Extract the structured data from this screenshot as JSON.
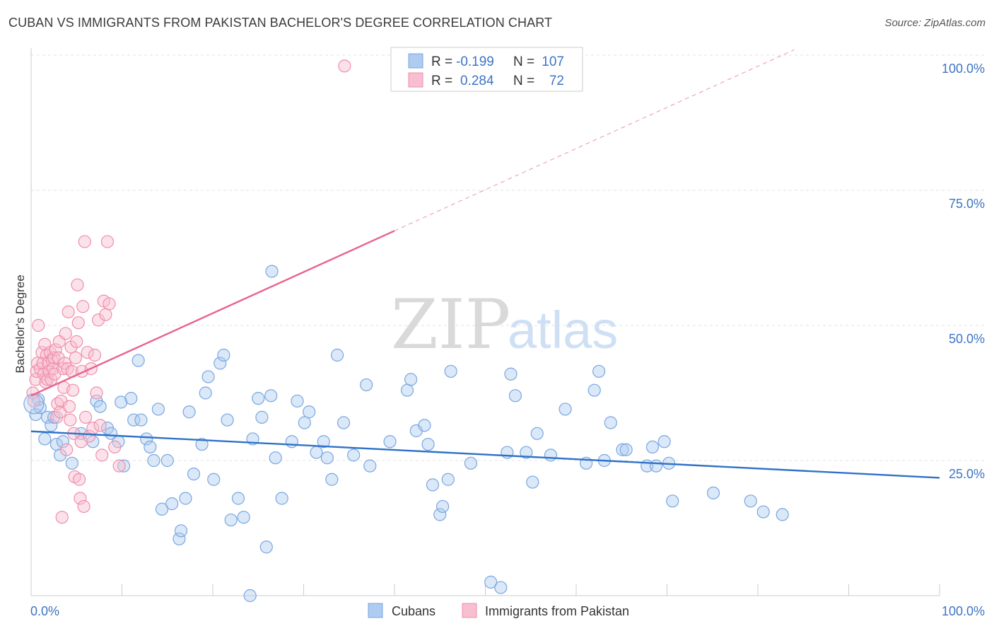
{
  "chart_data": {
    "type": "scatter",
    "title": "CUBAN VS IMMIGRANTS FROM PAKISTAN BACHELOR'S DEGREE CORRELATION CHART",
    "source": "Source: ZipAtlas.com",
    "ylabel": "Bachelor's Degree",
    "xlim": [
      0,
      100
    ],
    "ylim": [
      0,
      100
    ],
    "x_ticks": [
      "0.0%",
      "100.0%"
    ],
    "y_ticks": [
      {
        "value": 100,
        "label": "100.0%"
      },
      {
        "value": 75,
        "label": "75.0%"
      },
      {
        "value": 50,
        "label": "50.0%"
      },
      {
        "value": 25,
        "label": "25.0%"
      }
    ],
    "watermark": {
      "part1": "ZIP",
      "part2": "atlas"
    },
    "legend": [
      {
        "r_label": "R =",
        "r_value": "-0.199",
        "n_label": "N =",
        "n_value": "107"
      },
      {
        "r_label": "R =",
        "r_value": "0.284",
        "n_label": "N =",
        "n_value": "72"
      }
    ],
    "series": [
      {
        "name": "Cubans",
        "color": "#7aa7e0",
        "fill": "#aecbf0",
        "line_color": "#2f72c8",
        "trend": {
          "x0": 0,
          "y0": 30.4,
          "x1": 100,
          "y1": 21.8
        },
        "points": [
          [
            0.5,
            33.5
          ],
          [
            0.8,
            36.3
          ],
          [
            1.0,
            34.8
          ],
          [
            1.5,
            29.0
          ],
          [
            1.8,
            33.0
          ],
          [
            2.2,
            31.5
          ],
          [
            2.5,
            33.0
          ],
          [
            2.8,
            28.0
          ],
          [
            3.2,
            26.0
          ],
          [
            3.5,
            28.5
          ],
          [
            4.5,
            24.5
          ],
          [
            5.5,
            30.0
          ],
          [
            6.8,
            28.5
          ],
          [
            7.2,
            36.0
          ],
          [
            7.6,
            35.0
          ],
          [
            8.4,
            31.0
          ],
          [
            8.8,
            30.0
          ],
          [
            9.6,
            28.5
          ],
          [
            9.9,
            35.8
          ],
          [
            10.2,
            24.0
          ],
          [
            11.0,
            36.5
          ],
          [
            11.3,
            32.5
          ],
          [
            11.8,
            43.5
          ],
          [
            12.1,
            32.5
          ],
          [
            12.7,
            29.0
          ],
          [
            13.1,
            27.5
          ],
          [
            13.5,
            25.0
          ],
          [
            14.0,
            34.5
          ],
          [
            14.4,
            16.0
          ],
          [
            15.0,
            25.0
          ],
          [
            15.5,
            17.0
          ],
          [
            16.3,
            10.5
          ],
          [
            16.5,
            12.0
          ],
          [
            17.0,
            18.0
          ],
          [
            17.4,
            34.0
          ],
          [
            17.9,
            22.5
          ],
          [
            18.8,
            28.0
          ],
          [
            19.2,
            37.5
          ],
          [
            19.5,
            40.5
          ],
          [
            20.1,
            21.5
          ],
          [
            20.8,
            43.0
          ],
          [
            21.2,
            44.5
          ],
          [
            21.6,
            32.5
          ],
          [
            22.0,
            14.0
          ],
          [
            22.8,
            18.0
          ],
          [
            23.4,
            14.5
          ],
          [
            24.1,
            0.0
          ],
          [
            24.4,
            29.0
          ],
          [
            25.0,
            36.5
          ],
          [
            25.4,
            33.0
          ],
          [
            25.9,
            9.0
          ],
          [
            26.4,
            37.0
          ],
          [
            26.9,
            25.5
          ],
          [
            27.6,
            18.0
          ],
          [
            28.7,
            28.5
          ],
          [
            29.3,
            36.0
          ],
          [
            30.1,
            32.0
          ],
          [
            30.6,
            34.0
          ],
          [
            31.4,
            26.5
          ],
          [
            32.2,
            28.5
          ],
          [
            32.6,
            25.5
          ],
          [
            33.1,
            21.5
          ],
          [
            33.7,
            44.5
          ],
          [
            34.4,
            32.0
          ],
          [
            35.5,
            26.0
          ],
          [
            36.9,
            39.0
          ],
          [
            37.3,
            24.0
          ],
          [
            39.5,
            28.5
          ],
          [
            41.4,
            38.0
          ],
          [
            41.8,
            40.0
          ],
          [
            42.4,
            30.5
          ],
          [
            43.3,
            31.5
          ],
          [
            43.7,
            28.0
          ],
          [
            44.2,
            20.5
          ],
          [
            45.0,
            15.0
          ],
          [
            45.3,
            16.5
          ],
          [
            45.9,
            21.5
          ],
          [
            46.2,
            41.5
          ],
          [
            48.4,
            24.5
          ],
          [
            50.6,
            2.5
          ],
          [
            51.7,
            1.5
          ],
          [
            52.4,
            26.5
          ],
          [
            52.8,
            41.0
          ],
          [
            53.3,
            37.0
          ],
          [
            54.5,
            26.5
          ],
          [
            55.2,
            21.0
          ],
          [
            55.7,
            30.0
          ],
          [
            57.2,
            26.0
          ],
          [
            58.8,
            34.5
          ],
          [
            61.1,
            24.5
          ],
          [
            62.0,
            38.0
          ],
          [
            62.5,
            41.5
          ],
          [
            63.1,
            25.0
          ],
          [
            63.8,
            32.0
          ],
          [
            65.1,
            27.0
          ],
          [
            65.5,
            27.0
          ],
          [
            67.8,
            24.0
          ],
          [
            68.4,
            27.5
          ],
          [
            68.8,
            24.0
          ],
          [
            69.7,
            28.5
          ],
          [
            70.2,
            24.5
          ],
          [
            70.6,
            17.5
          ],
          [
            75.1,
            19.0
          ],
          [
            79.2,
            17.5
          ],
          [
            80.6,
            15.5
          ],
          [
            82.7,
            15.0
          ],
          [
            26.5,
            60.0
          ]
        ]
      },
      {
        "name": "Immigrants from Pakistan",
        "color": "#f08eab",
        "fill": "#f7bfd0",
        "line_color": "#e8628f",
        "trend": {
          "x0": 0,
          "y0": 37.0,
          "x1": 40,
          "y1": 67.5
        },
        "trend_ext": {
          "x0": 40,
          "y0": 67.5,
          "x1": 84,
          "y1": 101.0
        },
        "points": [
          [
            0.2,
            37.5
          ],
          [
            0.3,
            36.0
          ],
          [
            0.5,
            40.0
          ],
          [
            0.6,
            41.5
          ],
          [
            0.7,
            43.0
          ],
          [
            0.8,
            50.0
          ],
          [
            1.0,
            42.0
          ],
          [
            1.2,
            45.0
          ],
          [
            1.3,
            43.0
          ],
          [
            1.4,
            41.0
          ],
          [
            1.5,
            46.5
          ],
          [
            1.6,
            39.5
          ],
          [
            1.7,
            44.5
          ],
          [
            1.8,
            40.0
          ],
          [
            1.9,
            43.0
          ],
          [
            2.0,
            41.5
          ],
          [
            2.1,
            45.0
          ],
          [
            2.2,
            40.0
          ],
          [
            2.3,
            43.5
          ],
          [
            2.4,
            42.0
          ],
          [
            2.5,
            44.0
          ],
          [
            2.6,
            41.0
          ],
          [
            2.7,
            45.5
          ],
          [
            2.8,
            33.0
          ],
          [
            2.9,
            35.5
          ],
          [
            3.0,
            44.0
          ],
          [
            3.1,
            47.0
          ],
          [
            3.2,
            34.0
          ],
          [
            3.3,
            36.0
          ],
          [
            3.4,
            14.5
          ],
          [
            3.5,
            42.0
          ],
          [
            3.6,
            38.5
          ],
          [
            3.7,
            43.0
          ],
          [
            3.8,
            48.5
          ],
          [
            3.9,
            27.0
          ],
          [
            4.0,
            42.0
          ],
          [
            4.1,
            52.5
          ],
          [
            4.2,
            35.0
          ],
          [
            4.3,
            32.5
          ],
          [
            4.4,
            46.0
          ],
          [
            4.5,
            41.5
          ],
          [
            4.6,
            38.0
          ],
          [
            4.7,
            30.0
          ],
          [
            4.8,
            22.0
          ],
          [
            4.9,
            44.0
          ],
          [
            5.0,
            47.0
          ],
          [
            5.1,
            57.5
          ],
          [
            5.2,
            50.5
          ],
          [
            5.3,
            21.5
          ],
          [
            5.4,
            18.0
          ],
          [
            5.5,
            28.5
          ],
          [
            5.6,
            41.5
          ],
          [
            5.7,
            53.5
          ],
          [
            5.8,
            16.5
          ],
          [
            5.9,
            65.5
          ],
          [
            6.0,
            33.0
          ],
          [
            6.2,
            45.0
          ],
          [
            6.4,
            29.5
          ],
          [
            6.6,
            42.0
          ],
          [
            6.8,
            31.0
          ],
          [
            7.0,
            44.5
          ],
          [
            7.2,
            37.5
          ],
          [
            7.4,
            51.0
          ],
          [
            7.6,
            31.5
          ],
          [
            7.8,
            26.0
          ],
          [
            8.0,
            54.5
          ],
          [
            8.2,
            52.0
          ],
          [
            8.4,
            65.5
          ],
          [
            8.6,
            54.0
          ],
          [
            9.2,
            27.5
          ],
          [
            9.7,
            24.0
          ],
          [
            34.5,
            98.0
          ]
        ]
      }
    ]
  }
}
